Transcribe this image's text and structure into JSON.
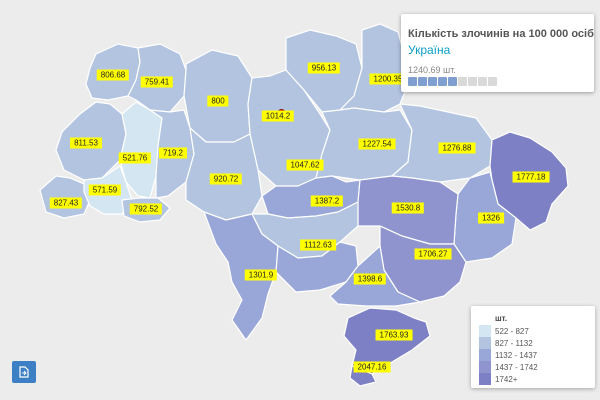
{
  "info": {
    "title": "Кількість злочинів на 100 000 осіб",
    "subtitle": "Україна",
    "value": "1240.69 шт.",
    "scale_filled": 5,
    "scale_total": 9
  },
  "legend": {
    "title": "шт.",
    "items": [
      {
        "label": "522 - 827",
        "color": "#d4e6f1"
      },
      {
        "label": "827 - 1132",
        "color": "#b2c4e0"
      },
      {
        "label": "1132 - 1437",
        "color": "#99a7d8"
      },
      {
        "label": "1437 - 1742",
        "color": "#8f94cf"
      },
      {
        "label": "1742+",
        "color": "#7d80c4"
      }
    ]
  },
  "colors": {
    "background": "#ececec",
    "label_background": "#ffff00",
    "highlight_color": "#d4e6f1",
    "accent": "#0c9fc7",
    "button": "#3d7fc4"
  },
  "export_button": {
    "icon": "document-export-icon"
  },
  "regions": {
    "volyn": "806.68",
    "rivne": "759.41",
    "zhytomyr": "800",
    "kyiv_city": "1014.2",
    "chernihiv": "956.13",
    "sumy": "1200.35",
    "lviv": "811.53",
    "ternopil": "521.76",
    "khmelnytskyi": "719.2",
    "vinnytsia": "920.72",
    "kyiv_oblast": "1047.62",
    "poltava": "1227.54",
    "kharkiv": "1276.88",
    "luhansk": "1777.18",
    "zakarpattia": "827.43",
    "ivano_frankivsk": "571.59",
    "chernivtsi": "792.52",
    "cherkasy": "1387.2",
    "dnipropetrovsk": "1530.8",
    "donetsk": "1326",
    "kirovohrad": "1112.63",
    "zaporizhzhia": "1706.27",
    "odesa": "1301.9",
    "mykolaiv": "1112.63",
    "kherson": "1398.6",
    "crimea": "1763.93",
    "sevastopol": "2047.16"
  }
}
